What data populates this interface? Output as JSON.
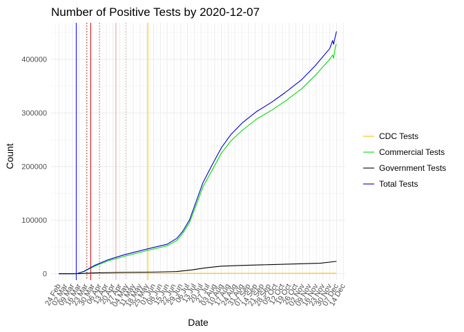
{
  "chart_data": {
    "type": "line",
    "title": "Number of Positive Tests by  2020-12-07",
    "xlabel": "Date",
    "ylabel": "Count",
    "ylim": [
      -12000,
      468000
    ],
    "xlim": [
      "2020-02-16",
      "2020-12-16"
    ],
    "y_ticks": [
      0,
      100000,
      200000,
      300000,
      400000
    ],
    "y_tick_labels": [
      "0",
      "100000",
      "200000",
      "300000",
      "400000"
    ],
    "x_ticks": [
      "2020-02-24",
      "2020-03-02",
      "2020-03-09",
      "2020-03-16",
      "2020-03-23",
      "2020-03-30",
      "2020-04-06",
      "2020-04-13",
      "2020-04-20",
      "2020-04-27",
      "2020-05-04",
      "2020-05-11",
      "2020-05-18",
      "2020-05-25",
      "2020-06-01",
      "2020-06-08",
      "2020-06-15",
      "2020-06-22",
      "2020-06-29",
      "2020-07-06",
      "2020-07-13",
      "2020-07-20",
      "2020-07-27",
      "2020-08-03",
      "2020-08-10",
      "2020-08-17",
      "2020-08-24",
      "2020-08-31",
      "2020-09-07",
      "2020-09-14",
      "2020-09-21",
      "2020-09-28",
      "2020-10-05",
      "2020-10-12",
      "2020-10-19",
      "2020-10-26",
      "2020-11-02",
      "2020-11-09",
      "2020-11-16",
      "2020-11-23",
      "2020-11-30",
      "2020-12-07",
      "2020-12-14"
    ],
    "x_tick_labels": [
      "24 Feb",
      "02 Mar",
      "09 Mar",
      "16 Mar",
      "23 Mar",
      "30 Mar",
      "06 Apr",
      "13 Apr",
      "20 Apr",
      "27 Apr",
      "04 May",
      "11 May",
      "18 May",
      "25 May",
      "01 Jun",
      "08 Jun",
      "15 Jun",
      "22 Jun",
      "29 Jun",
      "06 Jul",
      "13 Jul",
      "20 Jul",
      "27 Jul",
      "03 Aug",
      "10 Aug",
      "17 Aug",
      "24 Aug",
      "31 Aug",
      "07 Sep",
      "14 Sep",
      "21 Sep",
      "28 Sep",
      "05 Oct",
      "12 Oct",
      "19 Oct",
      "26 Oct",
      "02 Nov",
      "09 Nov",
      "16 Nov",
      "23 Nov",
      "30 Nov",
      "07 Dec",
      "14 Dec"
    ],
    "grid": true,
    "legend_position": "right",
    "series": [
      {
        "name": "CDC Tests",
        "color": "#ffc000",
        "points": [
          [
            "2020-02-24",
            0
          ],
          [
            "2020-03-15",
            50
          ],
          [
            "2020-04-01",
            300
          ],
          [
            "2020-05-01",
            500
          ],
          [
            "2020-06-01",
            600
          ],
          [
            "2020-08-01",
            700
          ],
          [
            "2020-10-01",
            750
          ],
          [
            "2020-12-07",
            800
          ]
        ]
      },
      {
        "name": "Commercial Tests",
        "color": "#00dd00",
        "points": [
          [
            "2020-02-24",
            0
          ],
          [
            "2020-03-09",
            0
          ],
          [
            "2020-03-14",
            200
          ],
          [
            "2020-03-21",
            4000
          ],
          [
            "2020-04-01",
            14000
          ],
          [
            "2020-04-15",
            24000
          ],
          [
            "2020-05-01",
            32000
          ],
          [
            "2020-05-25",
            43000
          ],
          [
            "2020-06-15",
            52000
          ],
          [
            "2020-06-25",
            62000
          ],
          [
            "2020-07-01",
            75000
          ],
          [
            "2020-07-08",
            95000
          ],
          [
            "2020-07-15",
            128000
          ],
          [
            "2020-07-22",
            162000
          ],
          [
            "2020-08-01",
            195000
          ],
          [
            "2020-08-10",
            225000
          ],
          [
            "2020-08-20",
            248000
          ],
          [
            "2020-09-01",
            268000
          ],
          [
            "2020-09-15",
            288000
          ],
          [
            "2020-10-01",
            305000
          ],
          [
            "2020-10-15",
            322000
          ],
          [
            "2020-11-01",
            345000
          ],
          [
            "2020-11-15",
            370000
          ],
          [
            "2020-11-30",
            400000
          ],
          [
            "2020-12-03",
            408000
          ],
          [
            "2020-12-04",
            402000
          ],
          [
            "2020-12-06",
            425000
          ],
          [
            "2020-12-07",
            428000
          ]
        ]
      },
      {
        "name": "Government Tests",
        "color": "#000000",
        "points": [
          [
            "2020-02-24",
            0
          ],
          [
            "2020-03-16",
            100
          ],
          [
            "2020-04-01",
            1500
          ],
          [
            "2020-05-01",
            2500
          ],
          [
            "2020-06-01",
            3000
          ],
          [
            "2020-06-25",
            4000
          ],
          [
            "2020-07-10",
            7000
          ],
          [
            "2020-07-25",
            11000
          ],
          [
            "2020-08-10",
            14000
          ],
          [
            "2020-09-01",
            15500
          ],
          [
            "2020-10-01",
            17000
          ],
          [
            "2020-11-01",
            18500
          ],
          [
            "2020-11-20",
            19500
          ],
          [
            "2020-12-07",
            23000
          ]
        ]
      },
      {
        "name": "Total Tests",
        "color": "#0000cc",
        "points": [
          [
            "2020-02-24",
            0
          ],
          [
            "2020-03-09",
            0
          ],
          [
            "2020-03-14",
            300
          ],
          [
            "2020-03-21",
            4500
          ],
          [
            "2020-04-01",
            15500
          ],
          [
            "2020-04-15",
            26000
          ],
          [
            "2020-05-01",
            35000
          ],
          [
            "2020-05-25",
            46000
          ],
          [
            "2020-06-15",
            55000
          ],
          [
            "2020-06-25",
            66000
          ],
          [
            "2020-07-01",
            79000
          ],
          [
            "2020-07-08",
            100000
          ],
          [
            "2020-07-15",
            135000
          ],
          [
            "2020-07-22",
            170000
          ],
          [
            "2020-08-01",
            205000
          ],
          [
            "2020-08-10",
            235000
          ],
          [
            "2020-08-20",
            260000
          ],
          [
            "2020-09-01",
            282000
          ],
          [
            "2020-09-15",
            302000
          ],
          [
            "2020-10-01",
            320000
          ],
          [
            "2020-10-15",
            338000
          ],
          [
            "2020-11-01",
            362000
          ],
          [
            "2020-11-15",
            388000
          ],
          [
            "2020-11-30",
            420000
          ],
          [
            "2020-12-03",
            435000
          ],
          [
            "2020-12-04",
            428000
          ],
          [
            "2020-12-06",
            445000
          ],
          [
            "2020-12-07",
            452000
          ]
        ]
      }
    ],
    "event_lines": [
      {
        "date": "2020-03-13",
        "color": "#0000ff",
        "style": "solid"
      },
      {
        "date": "2020-03-24",
        "color": "#990000",
        "style": "dotted"
      },
      {
        "date": "2020-03-28",
        "color": "#cc0000",
        "style": "solid"
      },
      {
        "date": "2020-04-06",
        "color": "#cc4444",
        "style": "dotted"
      },
      {
        "date": "2020-04-23",
        "color": "#e8a0a0",
        "style": "solid"
      },
      {
        "date": "2020-05-03",
        "color": "#e8a0a0",
        "style": "dotted"
      },
      {
        "date": "2020-05-26",
        "color": "#ffc000",
        "style": "solid"
      }
    ]
  }
}
